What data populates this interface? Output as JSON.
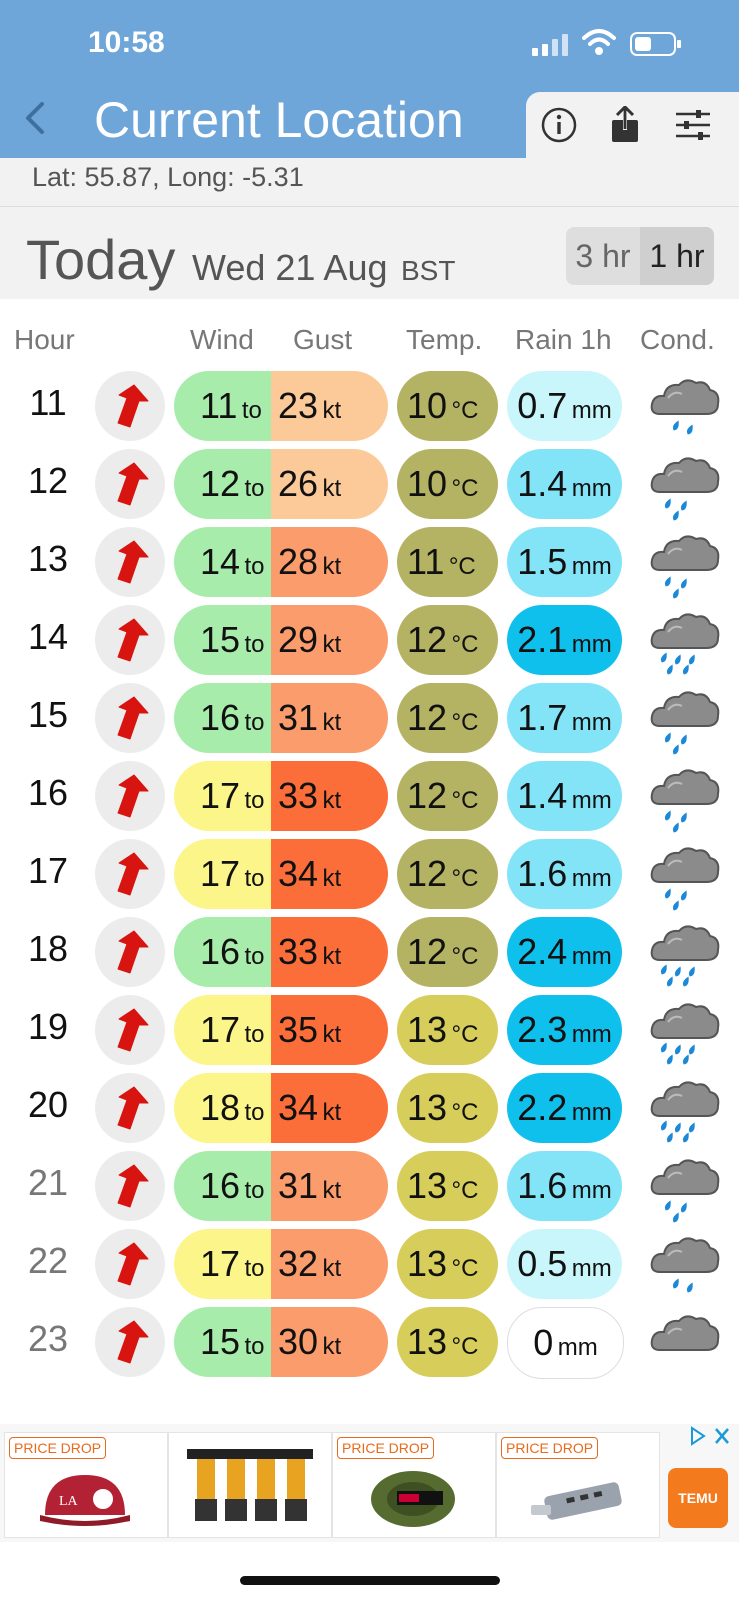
{
  "status_bar": {
    "time": "10:58"
  },
  "header": {
    "title": "Current Location"
  },
  "toolbar": {
    "icons": [
      "info-icon",
      "share-icon",
      "sliders-icon"
    ]
  },
  "location": {
    "coords": "Lat: 55.87, Long: -5.31"
  },
  "date_bar": {
    "today": "Today",
    "date": "Wed 21 Aug",
    "timezone": "BST",
    "interval_3hr": "3 hr",
    "interval_1hr": "1 hr",
    "selected_interval": "1 hr"
  },
  "columns": {
    "hour": "Hour",
    "wind": "Wind",
    "gust": "Gust",
    "temp": "Temp.",
    "rain": "Rain 1h",
    "cond": "Cond."
  },
  "units": {
    "wind_to": "to",
    "wind": "kt",
    "temp": "°C",
    "rain": "mm"
  },
  "rows": [
    {
      "hour": "11",
      "wind": "11",
      "gust": "23",
      "temp": "10",
      "rain": "0.7",
      "condition": "light-rain-icon"
    },
    {
      "hour": "12",
      "wind": "12",
      "gust": "26",
      "temp": "10",
      "rain": "1.4",
      "condition": "rain-icon"
    },
    {
      "hour": "13",
      "wind": "14",
      "gust": "28",
      "temp": "11",
      "rain": "1.5",
      "condition": "rain-icon"
    },
    {
      "hour": "14",
      "wind": "15",
      "gust": "29",
      "temp": "12",
      "rain": "2.1",
      "condition": "heavy-rain-icon"
    },
    {
      "hour": "15",
      "wind": "16",
      "gust": "31",
      "temp": "12",
      "rain": "1.7",
      "condition": "rain-icon"
    },
    {
      "hour": "16",
      "wind": "17",
      "gust": "33",
      "temp": "12",
      "rain": "1.4",
      "condition": "rain-icon"
    },
    {
      "hour": "17",
      "wind": "17",
      "gust": "34",
      "temp": "12",
      "rain": "1.6",
      "condition": "rain-icon"
    },
    {
      "hour": "18",
      "wind": "16",
      "gust": "33",
      "temp": "12",
      "rain": "2.4",
      "condition": "heavy-rain-icon"
    },
    {
      "hour": "19",
      "wind": "17",
      "gust": "35",
      "temp": "13",
      "rain": "2.3",
      "condition": "heavy-rain-icon"
    },
    {
      "hour": "20",
      "wind": "18",
      "gust": "34",
      "temp": "13",
      "rain": "2.2",
      "condition": "heavy-rain-icon"
    },
    {
      "hour": "21",
      "wind": "16",
      "gust": "31",
      "temp": "13",
      "rain": "1.6",
      "condition": "rain-icon"
    },
    {
      "hour": "22",
      "wind": "17",
      "gust": "32",
      "temp": "13",
      "rain": "0.5",
      "condition": "light-rain-icon"
    },
    {
      "hour": "23",
      "wind": "15",
      "gust": "30",
      "temp": "13",
      "rain": "0",
      "condition": "cloud-icon"
    }
  ],
  "ad": {
    "badge": "PRICE DROP",
    "cards": [
      {
        "badge": "PRICE DROP",
        "icon": "cap-icon"
      },
      {
        "badge": "",
        "icon": "drill-rack-icon"
      },
      {
        "badge": "PRICE DROP",
        "icon": "fishing-line-icon"
      },
      {
        "badge": "PRICE DROP",
        "icon": "usb-hub-icon"
      }
    ],
    "brand": "TEMU"
  },
  "colors": {
    "header_blue": "#6fa6d9",
    "wind_green": "#a8ecac",
    "wind_yellow": "#fbf58a",
    "gust_light": "#fcca99",
    "gust_mid": "#fb9c6c",
    "gust_dark": "#fb6e3a",
    "temp_olive": "#b4b263",
    "temp_yellow": "#d7cd5b",
    "rain_light": "#c9f6fb",
    "rain_mid": "#83e4f8",
    "rain_dark": "#10c0ec",
    "arrow_red": "#d7140f"
  }
}
